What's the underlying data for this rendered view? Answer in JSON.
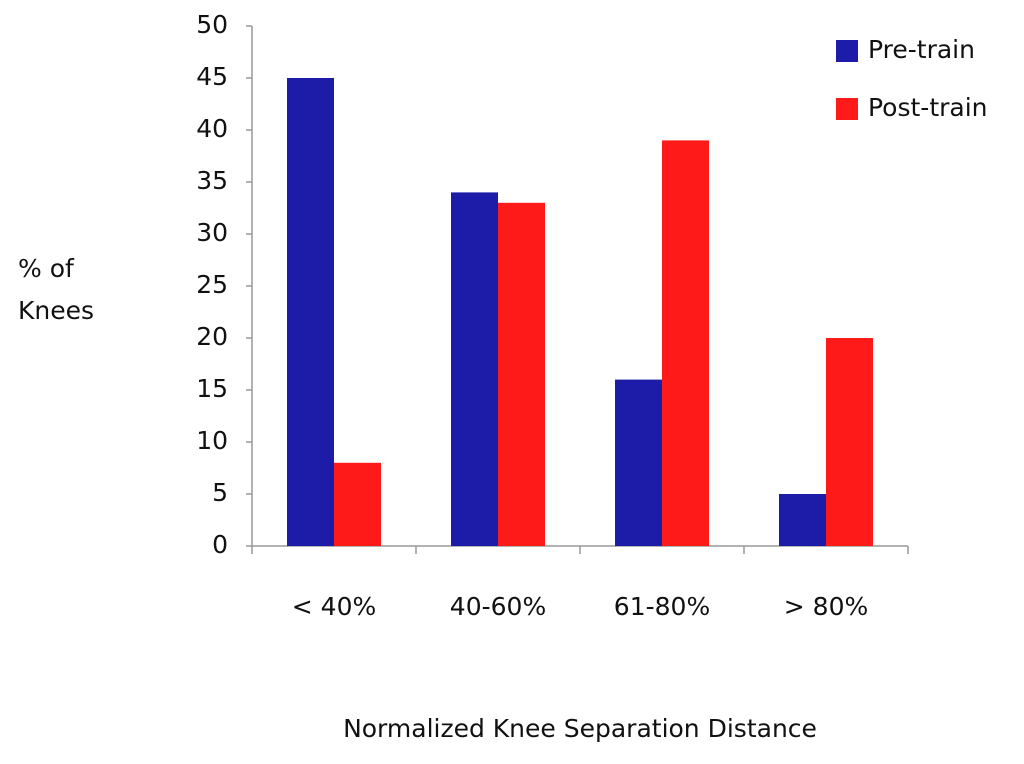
{
  "chart_data": {
    "type": "bar",
    "xlabel": "Normalized Knee Separation Distance",
    "ylabel": [
      "% of",
      "Knees"
    ],
    "categories": [
      "< 40%",
      "40-60%",
      "61-80%",
      "> 80%"
    ],
    "series": [
      {
        "name": "Pre-train",
        "color": "#1c1ca8",
        "values": [
          45,
          34,
          16,
          5
        ]
      },
      {
        "name": "Post-train",
        "color": "#ff1a1a",
        "values": [
          8,
          33,
          39,
          20
        ]
      }
    ],
    "ylim": [
      0,
      50
    ],
    "yticks": [
      0,
      5,
      10,
      15,
      20,
      25,
      30,
      35,
      40,
      45,
      50
    ],
    "grid": false,
    "legend": "top-right"
  }
}
